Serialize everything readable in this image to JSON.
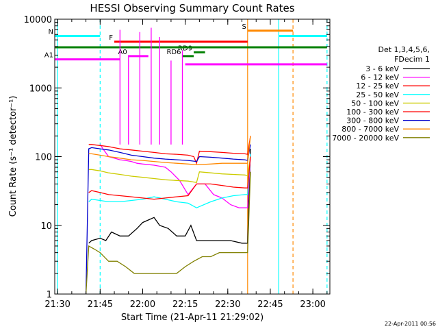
{
  "chart_data": {
    "type": "line",
    "title": "HESSI Observing Summary Count Rates",
    "xlabel": "Start Time (21-Apr-11 21:29:02)",
    "ylabel": "Count Rate (s⁻¹ detector⁻¹)",
    "x_ticks": [
      "21:30",
      "21:45",
      "22:00",
      "22:15",
      "22:30",
      "22:45",
      "23:00"
    ],
    "xlim": [
      "21:29",
      "23:06"
    ],
    "y_scale": "log",
    "ylim": [
      1,
      10000
    ],
    "y_ticks": [
      "1",
      "10",
      "100",
      "1000",
      "10000"
    ],
    "grid": false,
    "legend_position": "right",
    "legend_header": [
      "Det 1,3,4,5,6,",
      "FDecim 1"
    ],
    "timestamp": "22-Apr-2011 00:56",
    "series": [
      {
        "name": "3 - 6 keV",
        "color": "#000000",
        "x": [
          "21:41",
          "21:42",
          "21:45",
          "21:47",
          "21:49",
          "21:52",
          "21:55",
          "21:58",
          "22:00",
          "22:04",
          "22:06",
          "22:09",
          "22:12",
          "22:15",
          "22:17",
          "22:19",
          "22:23",
          "22:27",
          "22:31",
          "22:35",
          "22:37",
          "22:38"
        ],
        "y": [
          5.5,
          6,
          6.5,
          6,
          8,
          7,
          7,
          9,
          11,
          13,
          10,
          9,
          7,
          7,
          10,
          6,
          6,
          6,
          6,
          5.5,
          5.5,
          130
        ]
      },
      {
        "name": "6 - 12 keV",
        "color": "#ff00ff",
        "x": [
          "21:45",
          "21:46",
          "21:48",
          "21:50",
          "21:52",
          "21:54",
          "21:56",
          "21:58",
          "22:00",
          "22:04",
          "22:08",
          "22:10",
          "22:13",
          "22:16",
          "22:19",
          "22:22",
          "22:25",
          "22:28",
          "22:31",
          "22:34",
          "22:36",
          "22:37",
          "22:38"
        ],
        "y": [
          150,
          130,
          100,
          95,
          90,
          88,
          85,
          80,
          78,
          75,
          70,
          60,
          45,
          28,
          40,
          40,
          28,
          25,
          20,
          18,
          18,
          18,
          110
        ]
      },
      {
        "name": "12 - 25 keV",
        "color": "#ff0000",
        "x": [
          "21:41",
          "21:42",
          "21:45",
          "21:48",
          "21:52",
          "21:56",
          "22:00",
          "22:04",
          "22:08",
          "22:12",
          "22:16",
          "22:18",
          "22:19",
          "22:20",
          "22:24",
          "22:28",
          "22:32",
          "22:36",
          "22:37",
          "22:38"
        ],
        "y": [
          150,
          150,
          145,
          140,
          130,
          125,
          120,
          115,
          110,
          108,
          105,
          100,
          80,
          120,
          118,
          115,
          112,
          110,
          108,
          200
        ]
      },
      {
        "name": "25 - 50 keV",
        "color": "#00ffff",
        "x": [
          "21:41",
          "21:42",
          "21:45",
          "21:48",
          "21:52",
          "21:56",
          "22:00",
          "22:04",
          "22:08",
          "22:12",
          "22:16",
          "22:19",
          "22:24",
          "22:28",
          "22:32",
          "22:36",
          "22:37",
          "22:38"
        ],
        "y": [
          22,
          24,
          23,
          22,
          22,
          23,
          24,
          26,
          24,
          22,
          21,
          18,
          22,
          25,
          27,
          28,
          28,
          110
        ]
      },
      {
        "name": "50 - 100 keV",
        "color": "#cccc00",
        "x": [
          "21:41",
          "21:42",
          "21:45",
          "21:48",
          "21:52",
          "21:56",
          "22:00",
          "22:04",
          "22:08",
          "22:12",
          "22:16",
          "22:19",
          "22:20",
          "22:24",
          "22:28",
          "22:32",
          "22:36",
          "22:37",
          "22:38"
        ],
        "y": [
          65,
          65,
          62,
          58,
          55,
          52,
          50,
          48,
          46,
          45,
          44,
          42,
          60,
          58,
          56,
          55,
          54,
          53,
          100
        ]
      },
      {
        "name": "100 - 300 keV",
        "color": "#ff0000",
        "x": [
          "21:41",
          "21:42",
          "21:45",
          "21:48",
          "21:52",
          "21:56",
          "22:00",
          "22:04",
          "22:08",
          "22:12",
          "22:16",
          "22:19",
          "22:24",
          "22:28",
          "22:32",
          "22:36",
          "22:37",
          "22:38"
        ],
        "y": [
          30,
          32,
          30,
          28,
          27,
          26,
          25,
          24,
          25,
          26,
          27,
          40,
          40,
          38,
          36,
          35,
          35,
          100
        ]
      },
      {
        "name": "300 - 800 keV",
        "color": "#0000cc",
        "x": [
          "21:40",
          "21:41",
          "21:42",
          "21:45",
          "21:48",
          "21:52",
          "21:56",
          "22:00",
          "22:04",
          "22:08",
          "22:12",
          "22:16",
          "22:19",
          "22:20",
          "22:24",
          "22:28",
          "22:32",
          "22:36",
          "22:37",
          "22:38"
        ],
        "y": [
          1,
          130,
          135,
          130,
          125,
          115,
          105,
          100,
          95,
          92,
          90,
          88,
          85,
          100,
          98,
          95,
          92,
          90,
          88,
          150
        ]
      },
      {
        "name": "800 - 7000 keV",
        "color": "#ff8800",
        "x": [
          "21:41",
          "21:42",
          "21:45",
          "21:48",
          "21:52",
          "21:56",
          "22:00",
          "22:04",
          "22:08",
          "22:12",
          "22:16",
          "22:19",
          "22:24",
          "22:28",
          "22:32",
          "22:36",
          "22:37",
          "22:38"
        ],
        "y": [
          110,
          110,
          105,
          100,
          95,
          90,
          88,
          85,
          82,
          80,
          78,
          76,
          78,
          80,
          80,
          80,
          80,
          200
        ]
      },
      {
        "name": "7000 - 20000 keV",
        "color": "#808000",
        "x": [
          "21:40",
          "21:41",
          "21:43",
          "21:45",
          "21:48",
          "21:51",
          "21:54",
          "21:57",
          "22:00",
          "22:03",
          "22:06",
          "22:09",
          "22:12",
          "22:15",
          "22:18",
          "22:21",
          "22:24",
          "22:27",
          "22:30",
          "22:33",
          "22:36",
          "22:37",
          "22:38"
        ],
        "y": [
          1,
          5,
          4.5,
          4,
          3,
          3,
          2.5,
          2,
          2,
          2,
          2,
          2,
          2,
          2.5,
          3,
          3.5,
          3.5,
          4,
          4,
          4,
          4,
          4,
          60
        ]
      }
    ],
    "attenuator_spikes": {
      "color": "#ff00ff",
      "x": [
        "21:52",
        "21:55",
        "21:59",
        "22:03",
        "22:06",
        "22:10",
        "22:14"
      ],
      "y": [
        7000,
        3000,
        6500,
        7500,
        5500,
        2500,
        3500
      ]
    },
    "state_bars": [
      {
        "label": "N",
        "color": "#00ffff",
        "segments": [
          [
            "21:29",
            "21:45",
            5700
          ],
          [
            "22:48",
            "23:05",
            5700
          ]
        ]
      },
      {
        "label": "F",
        "color": "#ff0000",
        "segments": [
          [
            "21:50",
            "22:37",
            4700
          ]
        ]
      },
      {
        "label": "S",
        "color": "#ff8800",
        "segments": [
          [
            "22:37",
            "22:53",
            6800
          ]
        ]
      },
      {
        "label": "A0",
        "color": "#ff00ff",
        "segments": [
          [
            "21:55",
            "22:02",
            2900
          ]
        ]
      },
      {
        "label": "A1",
        "color": "#ff00ff",
        "segments": [
          [
            "21:29",
            "21:52",
            2600
          ],
          [
            "22:15",
            "23:05",
            2200
          ]
        ]
      },
      {
        "label": "RD6",
        "color": "#008000",
        "segments": [
          [
            "22:14",
            "22:18",
            2900
          ]
        ]
      },
      {
        "label": "RD9",
        "color": "#008000",
        "segments": [
          [
            "22:18",
            "22:22",
            3300
          ]
        ]
      },
      {
        "label": "",
        "color": "#008000",
        "segments": [
          [
            "21:29",
            "23:05",
            3900
          ]
        ]
      }
    ],
    "vertical_markers": [
      {
        "x": "21:30",
        "color": "#00ffff",
        "style": "solid"
      },
      {
        "x": "21:45",
        "color": "#00ffff",
        "style": "dashed"
      },
      {
        "x": "22:37",
        "color": "#ff8800",
        "style": "solid"
      },
      {
        "x": "22:48",
        "color": "#00ffff",
        "style": "solid"
      },
      {
        "x": "22:53",
        "color": "#ff8800",
        "style": "dashed"
      },
      {
        "x": "23:05",
        "color": "#00ffff",
        "style": "dashed"
      }
    ]
  }
}
